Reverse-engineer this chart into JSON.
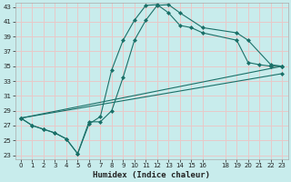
{
  "xlabel": "Humidex (Indice chaleur)",
  "bg_color": "#c8ecec",
  "grid_color": "#e8c8c8",
  "line_color": "#1a7068",
  "xlim": [
    -0.5,
    23.5
  ],
  "ylim": [
    22.5,
    43.5
  ],
  "yticks": [
    23,
    25,
    27,
    29,
    31,
    33,
    35,
    37,
    39,
    41,
    43
  ],
  "xticks": [
    0,
    1,
    2,
    3,
    4,
    5,
    6,
    7,
    8,
    9,
    10,
    11,
    12,
    13,
    14,
    15,
    16,
    18,
    19,
    20,
    21,
    22,
    23
  ],
  "line1": {
    "x": [
      0,
      1,
      2,
      3,
      4,
      5,
      6,
      7,
      8,
      9,
      10,
      11,
      12,
      13,
      14,
      16,
      19,
      20,
      22,
      23
    ],
    "y": [
      28,
      27,
      26.5,
      26,
      25.2,
      23.2,
      27.5,
      27.5,
      29.0,
      33.5,
      38.5,
      41.2,
      43.2,
      43.3,
      42.2,
      40.2,
      39.5,
      38.5,
      35.2,
      35.0
    ]
  },
  "line2": {
    "x": [
      0,
      1,
      2,
      3,
      4,
      5,
      6,
      7,
      8,
      9,
      10,
      11,
      12,
      13,
      14,
      15,
      16,
      19,
      20,
      21,
      22,
      23
    ],
    "y": [
      28,
      27,
      26.5,
      26,
      25.2,
      23.2,
      27.2,
      28.2,
      34.5,
      38.5,
      41.2,
      43.2,
      43.3,
      42.2,
      40.5,
      40.2,
      39.5,
      38.5,
      35.5,
      35.2,
      35.0,
      35.0
    ]
  },
  "line3": {
    "x": [
      0,
      23
    ],
    "y": [
      28,
      35.0
    ]
  },
  "line4": {
    "x": [
      0,
      23
    ],
    "y": [
      28,
      34.0
    ]
  }
}
